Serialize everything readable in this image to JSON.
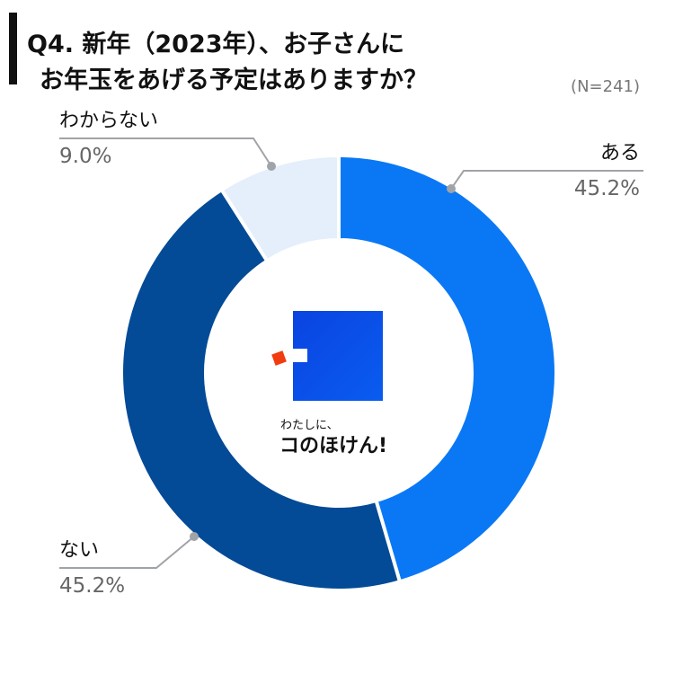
{
  "header": {
    "title_line1": "Q4. 新年（2023年）、お子さんに",
    "title_line2": "お年玉をあげる予定はありますか？",
    "sample_size": "(N=241)"
  },
  "center_logo": {
    "tagline": "わたしに、",
    "brand": "コのほけん!"
  },
  "labels": {
    "aru": {
      "name": "ある",
      "pct": "45.2%"
    },
    "nai": {
      "name": "ない",
      "pct": "45.2%"
    },
    "wakaranai": {
      "name": "わからない",
      "pct": "9.0%"
    }
  },
  "colors": {
    "aru": "#0a78f5",
    "nai": "#034a97",
    "wakaranai": "#e4effb",
    "leader": "#a0a3a8",
    "logo_blue": "#0a50e6",
    "logo_red": "#f03c0f"
  },
  "chart_data": {
    "type": "pie",
    "donut": true,
    "title": "Q4. 新年（2023年）、お子さんにお年玉をあげる予定はありますか？",
    "subtitle": "(N=241)",
    "categories": [
      "ある",
      "ない",
      "わからない"
    ],
    "values": [
      45.2,
      45.2,
      9.0
    ],
    "unit": "%",
    "start_angle": "12 o'clock, clockwise",
    "legend": "none (direct labels with leader lines)"
  }
}
